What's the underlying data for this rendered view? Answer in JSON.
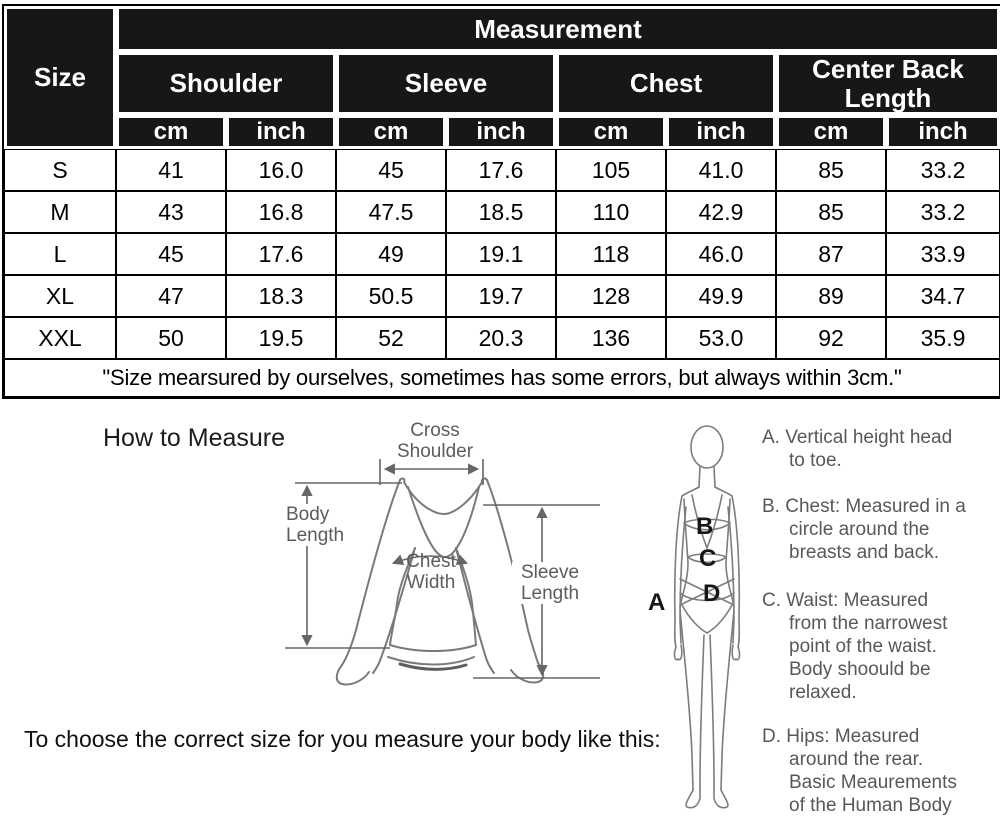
{
  "table": {
    "title": "Measurement",
    "size_header": "Size",
    "groups": [
      "Shoulder",
      "Sleeve",
      "Chest",
      "Center Back Length"
    ],
    "units": [
      "cm",
      "inch",
      "cm",
      "inch",
      "cm",
      "inch",
      "cm",
      "inch"
    ],
    "rows": [
      {
        "size": "S",
        "values": [
          "41",
          "16.0",
          "45",
          "17.6",
          "105",
          "41.0",
          "85",
          "33.2"
        ]
      },
      {
        "size": "M",
        "values": [
          "43",
          "16.8",
          "47.5",
          "18.5",
          "110",
          "42.9",
          "85",
          "33.2"
        ]
      },
      {
        "size": "L",
        "values": [
          "45",
          "17.6",
          "49",
          "19.1",
          "118",
          "46.0",
          "87",
          "33.9"
        ]
      },
      {
        "size": "XL",
        "values": [
          "47",
          "18.3",
          "50.5",
          "19.7",
          "128",
          "49.9",
          "89",
          "34.7"
        ]
      },
      {
        "size": "XXL",
        "values": [
          "50",
          "19.5",
          "52",
          "20.3",
          "136",
          "53.0",
          "92",
          "35.9"
        ]
      }
    ],
    "note": "\"Size mearsured by ourselves, sometimes has some errors, but always within 3cm.\""
  },
  "how_to_measure": {
    "title": "How to Measure",
    "shirt_labels": {
      "cross_shoulder": [
        "Cross",
        "Shoulder"
      ],
      "body_length": [
        "Body",
        "Length"
      ],
      "chest_width": [
        "Chest",
        "Width"
      ],
      "sleeve_length": [
        "Sleeve",
        "Length"
      ]
    },
    "figure_labels": {
      "a": "A",
      "b": "B",
      "c": "C",
      "d": "D"
    },
    "instructions": [
      {
        "lines": [
          "A. Vertical height head",
          "to toe."
        ]
      },
      {
        "lines": [
          "B. Chest: Measured in a",
          "circle around the",
          "breasts and back."
        ]
      },
      {
        "lines": [
          "C. Waist: Measured",
          "from the narrowest",
          "point of the waist.",
          "Body shoould be",
          "relaxed."
        ]
      },
      {
        "lines": [
          "D. Hips: Measured",
          "around the rear.",
          "Basic Meaurements",
          "of the Human Body"
        ]
      }
    ]
  },
  "footer": {
    "text": "To choose the correct size for you measure your body like this:"
  },
  "colors": {
    "header_bg": "#171717",
    "header_text": "#ffffff",
    "grid_line": "#000000",
    "diagram_line": "#7a7a7a",
    "dimension_line": "#666666",
    "instruction_text": "#57585a"
  }
}
